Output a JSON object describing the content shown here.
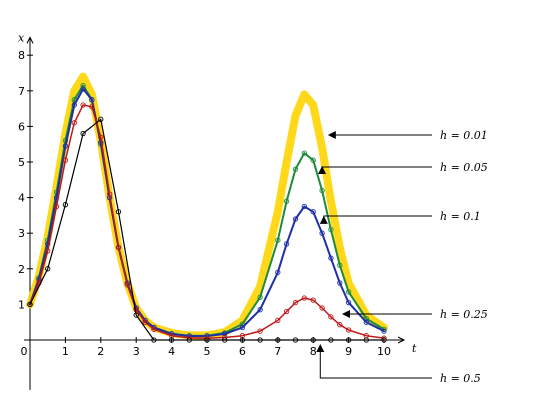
{
  "chart_data": {
    "type": "line",
    "xlabel": "t",
    "ylabel": "x",
    "xlim": [
      0,
      10
    ],
    "ylim": [
      -1.4,
      8.5
    ],
    "xticks": [
      "0",
      "1",
      "2",
      "3",
      "4",
      "5",
      "6",
      "7",
      "8",
      "9",
      "10"
    ],
    "yticks": [
      "1",
      "2",
      "3",
      "4",
      "5",
      "6",
      "7",
      "8"
    ],
    "series": [
      {
        "name": "h = 0.01",
        "color": "#FFD400",
        "marker": "none",
        "x": [
          0,
          0.25,
          0.5,
          0.75,
          1.0,
          1.25,
          1.5,
          1.75,
          2.0,
          2.25,
          2.5,
          2.75,
          3.0,
          3.25,
          3.5,
          4.0,
          4.5,
          5.0,
          5.5,
          6.0,
          6.5,
          7.0,
          7.25,
          7.5,
          7.75,
          8.0,
          8.25,
          8.5,
          8.75,
          9.0,
          9.5,
          10.0
        ],
        "values": [
          1.0,
          1.8,
          2.9,
          4.3,
          5.8,
          7.0,
          7.4,
          6.9,
          5.6,
          4.0,
          2.6,
          1.6,
          0.9,
          0.55,
          0.35,
          0.2,
          0.13,
          0.13,
          0.22,
          0.55,
          1.5,
          3.6,
          5.0,
          6.3,
          6.9,
          6.6,
          5.4,
          3.9,
          2.6,
          1.6,
          0.7,
          0.35
        ]
      },
      {
        "name": "h = 0.05",
        "color": "#1E8C3A",
        "marker": "circle",
        "x": [
          0,
          0.25,
          0.5,
          0.75,
          1.0,
          1.25,
          1.5,
          1.75,
          2.0,
          2.25,
          2.5,
          2.75,
          3.0,
          3.25,
          3.5,
          4.0,
          4.5,
          5.0,
          5.5,
          6.0,
          6.5,
          7.0,
          7.25,
          7.5,
          7.75,
          8.0,
          8.25,
          8.5,
          8.75,
          9.0,
          9.5,
          10.0
        ],
        "values": [
          1.0,
          1.75,
          2.8,
          4.15,
          5.6,
          6.75,
          7.15,
          6.75,
          5.5,
          4.0,
          2.6,
          1.6,
          0.9,
          0.55,
          0.35,
          0.18,
          0.12,
          0.12,
          0.2,
          0.45,
          1.2,
          2.8,
          3.9,
          4.8,
          5.25,
          5.05,
          4.2,
          3.1,
          2.1,
          1.35,
          0.6,
          0.3
        ]
      },
      {
        "name": "h = 0.1",
        "color": "#1F2FA8",
        "marker": "circle",
        "x": [
          0,
          0.25,
          0.5,
          0.75,
          1.0,
          1.25,
          1.5,
          1.75,
          2.0,
          2.25,
          2.5,
          2.75,
          3.0,
          3.25,
          3.5,
          4.0,
          4.5,
          5.0,
          5.5,
          6.0,
          6.5,
          7.0,
          7.25,
          7.5,
          7.75,
          8.0,
          8.25,
          8.5,
          8.75,
          9.0,
          9.5,
          10.0
        ],
        "values": [
          1.0,
          1.7,
          2.7,
          4.0,
          5.45,
          6.6,
          7.05,
          6.75,
          5.55,
          4.0,
          2.6,
          1.6,
          0.9,
          0.55,
          0.35,
          0.17,
          0.11,
          0.11,
          0.17,
          0.35,
          0.85,
          1.9,
          2.7,
          3.4,
          3.75,
          3.6,
          3.0,
          2.3,
          1.6,
          1.05,
          0.5,
          0.25
        ]
      },
      {
        "name": "h = 0.25",
        "color": "#C01818",
        "marker": "circle",
        "x": [
          0,
          0.25,
          0.5,
          0.75,
          1.0,
          1.25,
          1.5,
          1.75,
          2.0,
          2.25,
          2.5,
          2.75,
          3.0,
          3.25,
          3.5,
          4.0,
          4.5,
          5.0,
          5.5,
          6.0,
          6.5,
          7.0,
          7.25,
          7.5,
          7.75,
          8.0,
          8.25,
          8.5,
          8.75,
          9.0,
          9.5,
          10.0
        ],
        "values": [
          1.0,
          1.6,
          2.5,
          3.75,
          5.05,
          6.1,
          6.6,
          6.55,
          5.7,
          4.1,
          2.6,
          1.55,
          0.85,
          0.5,
          0.3,
          0.12,
          0.06,
          0.05,
          0.07,
          0.12,
          0.25,
          0.55,
          0.8,
          1.05,
          1.18,
          1.12,
          0.9,
          0.65,
          0.43,
          0.28,
          0.12,
          0.05
        ]
      },
      {
        "name": "h = 0.5",
        "color": "#000000",
        "marker": "circle",
        "x": [
          0,
          0.5,
          1.0,
          1.5,
          2.0,
          2.5,
          3.0,
          3.5,
          4.0,
          4.5,
          5.0,
          5.5,
          6.0,
          6.5,
          7.0,
          7.5,
          8.0,
          8.5,
          9.0,
          9.5,
          10.0
        ],
        "values": [
          1.0,
          2.0,
          3.8,
          5.8,
          6.2,
          3.6,
          0.7,
          0.0,
          0.0,
          0.0,
          0.0,
          0.0,
          0.0,
          0.0,
          0.0,
          0.0,
          0.0,
          0.0,
          0.0,
          0.0,
          0.0
        ]
      }
    ],
    "annotations": [
      {
        "text": "h = 0.01",
        "target_x": 8.3,
        "target_y": 5.8
      },
      {
        "text": "h = 0.05",
        "target_x": 8.25,
        "target_y": 5.0
      },
      {
        "text": "h = 0.1",
        "target_x": 8.3,
        "target_y": 3.6
      },
      {
        "text": "h = 0.25",
        "target_x": 8.7,
        "target_y": 0.8
      },
      {
        "text": "h = 0.5",
        "target_x": 8.2,
        "target_y": 0.0
      }
    ]
  }
}
